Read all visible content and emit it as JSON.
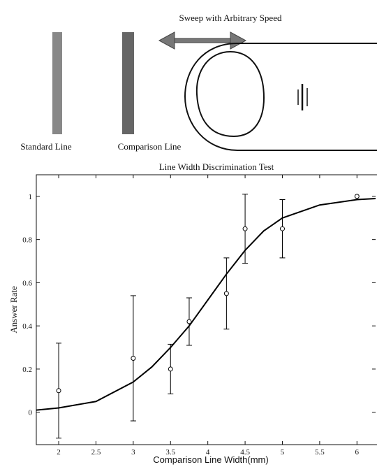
{
  "diagram": {
    "sweep_label": "Sweep with Arbitrary Speed",
    "standard_label": "Standard Line",
    "comparison_label": "Comparison Line"
  },
  "chart_data": {
    "type": "scatter",
    "title": "Line Width Discrimination Test",
    "x_label": "Comparison Line Width(mm)",
    "y_label": "Answer Rate",
    "xlim": [
      1.7,
      6.25
    ],
    "ylim": [
      -0.15,
      1.1
    ],
    "xticks": [
      2,
      2.5,
      3,
      3.5,
      4,
      4.5,
      5,
      5.5,
      6
    ],
    "yticks": [
      0,
      0.2,
      0.4,
      0.6,
      0.8,
      1
    ],
    "series": [
      {
        "type": "scatter",
        "color": "#000",
        "x": [
          2,
          3,
          3.5,
          3.75,
          4.25,
          4.5,
          5,
          6
        ],
        "values": [
          0.1,
          0.25,
          0.2,
          0.42,
          0.55,
          0.85,
          0.85,
          1.0
        ],
        "errors": [
          0.22,
          0.29,
          0.115,
          0.11,
          0.165,
          0.16,
          0.135,
          null
        ]
      },
      {
        "type": "line",
        "color": "#000",
        "x": [
          1.7,
          2,
          2.5,
          3,
          3.25,
          3.5,
          3.75,
          4,
          4.25,
          4.5,
          4.75,
          5,
          5.5,
          6,
          6.25
        ],
        "values": [
          0.01,
          0.02,
          0.05,
          0.14,
          0.21,
          0.3,
          0.4,
          0.52,
          0.64,
          0.75,
          0.84,
          0.9,
          0.96,
          0.985,
          0.99
        ]
      }
    ]
  }
}
